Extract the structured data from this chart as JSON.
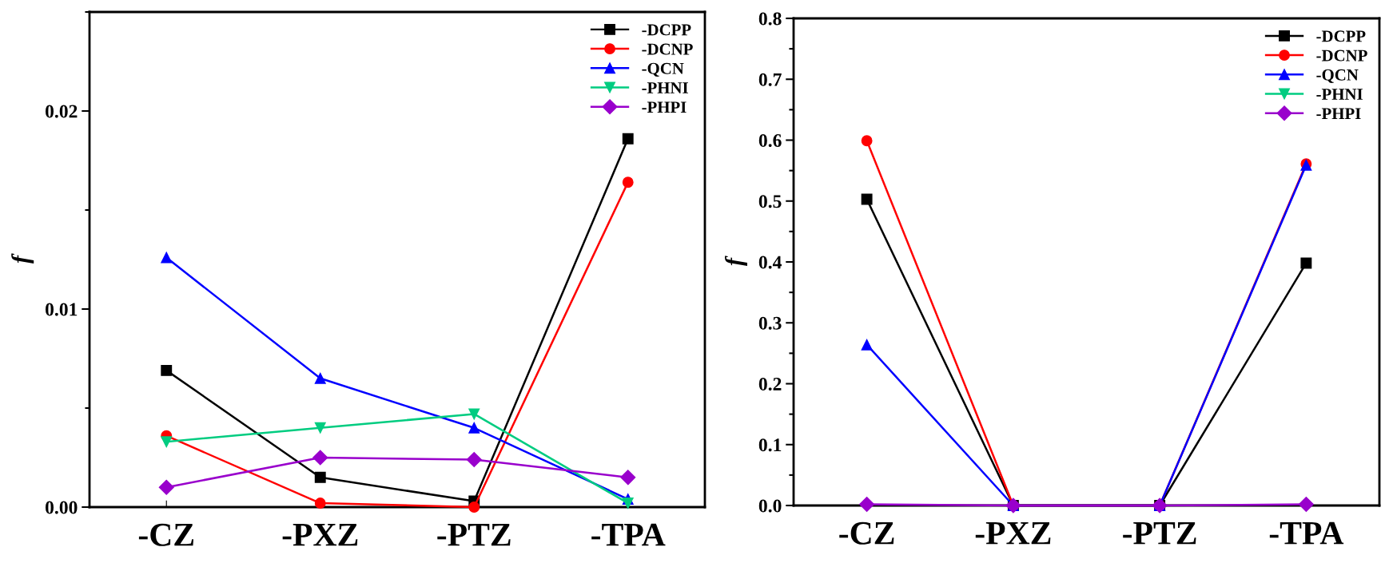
{
  "chart_data": [
    {
      "type": "line",
      "categories": [
        "-CZ",
        "-PXZ",
        "-PTZ",
        "-TPA"
      ],
      "ylabel": "f",
      "ylim": [
        0,
        0.025
      ],
      "yticks": [
        {
          "value": 0,
          "label": "0.00"
        },
        0.01,
        0.02
      ],
      "legend": "top right",
      "grid": false,
      "series": [
        {
          "name": "-DCPP",
          "color": "#000000",
          "marker": "square",
          "values": [
            0.0069,
            0.0015,
            0.0003,
            0.0186
          ]
        },
        {
          "name": "-DCNP",
          "color": "#ff0000",
          "marker": "circle",
          "values": [
            0.0036,
            0.0002,
            0.0,
            0.0164
          ]
        },
        {
          "name": "-QCN",
          "color": "#0000ff",
          "marker": "triangle",
          "values": [
            0.0126,
            0.0065,
            0.004,
            0.0004
          ]
        },
        {
          "name": "-PHNI",
          "color": "#00cc80",
          "marker": "triangle_down",
          "values": [
            0.0033,
            0.004,
            0.0047,
            0.0002
          ]
        },
        {
          "name": "-PHPI",
          "color": "#9900cc",
          "marker": "diamond",
          "values": [
            0.001,
            0.0025,
            0.0024,
            0.0015
          ]
        }
      ]
    },
    {
      "type": "line",
      "categories": [
        "-CZ",
        "-PXZ",
        "-PTZ",
        "-TPA"
      ],
      "ylabel": "f",
      "ylim": [
        0,
        0.8
      ],
      "yticks": [
        {
          "value": 0,
          "label": "0.0"
        },
        0.1,
        0.2,
        0.3,
        0.4,
        0.5,
        0.6,
        0.7,
        0.8
      ],
      "legend": "top right",
      "grid": false,
      "series": [
        {
          "name": "-DCPP",
          "color": "#000000",
          "marker": "square",
          "values": [
            0.503,
            0.0,
            0.0,
            0.398
          ]
        },
        {
          "name": "-DCNP",
          "color": "#ff0000",
          "marker": "circle",
          "values": [
            0.599,
            0.0,
            0.0,
            0.561
          ]
        },
        {
          "name": "-QCN",
          "color": "#0000ff",
          "marker": "triangle",
          "values": [
            0.264,
            0.0,
            0.0,
            0.559
          ]
        },
        {
          "name": "-PHNI",
          "color": "#00cc80",
          "marker": "triangle_down",
          "values": [
            null,
            null,
            null,
            null
          ]
        },
        {
          "name": "-PHPI",
          "color": "#9900cc",
          "marker": "diamond",
          "values": [
            0.002,
            0.0,
            0.0,
            0.002
          ]
        }
      ]
    }
  ]
}
